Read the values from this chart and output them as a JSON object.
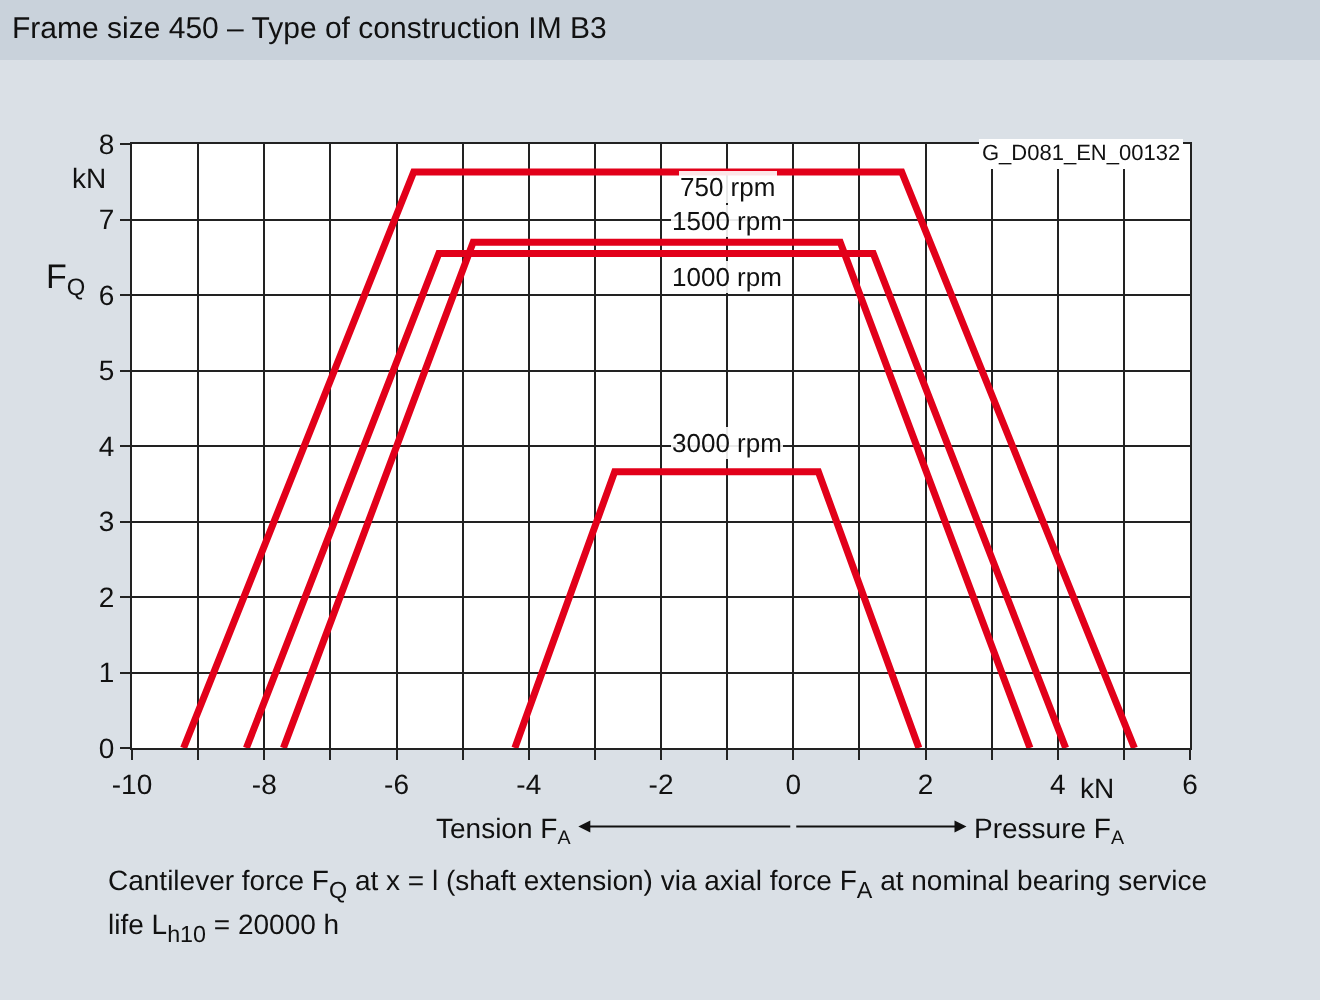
{
  "chart_data": {
    "type": "line",
    "title": "Frame size 450 – Type of construction IM B3",
    "ylabel": "F$_{Q}$",
    "series": [
      {
        "name": "750 rpm",
        "color": "#e2001a",
        "x": [
          -9.22,
          -5.74,
          1.64,
          5.16
        ],
        "values": [
          0,
          7.63,
          7.63,
          0
        ]
      },
      {
        "name": "1500 rpm",
        "color": "#e2001a",
        "x": [
          -7.71,
          -4.84,
          0.71,
          3.58
        ],
        "values": [
          0,
          6.7,
          6.7,
          0
        ]
      },
      {
        "name": "1000 rpm",
        "color": "#e2001a",
        "x": [
          -8.27,
          -5.36,
          1.21,
          4.12
        ],
        "values": [
          0,
          6.55,
          6.55,
          0
        ]
      },
      {
        "name": "3000 rpm",
        "color": "#e2001a",
        "x": [
          -4.21,
          -2.7,
          0.38,
          1.9
        ],
        "values": [
          0,
          3.66,
          3.66,
          0
        ]
      }
    ],
    "xlim": [
      -10,
      6
    ],
    "ylim": [
      0,
      8
    ],
    "xticks": [
      -10,
      {
        "value": -9,
        "label": null
      },
      -8,
      {
        "value": -7,
        "label": null
      },
      -6,
      {
        "value": -5,
        "label": null
      },
      -4,
      {
        "value": -3,
        "label": null
      },
      -2,
      {
        "value": -1,
        "label": null
      },
      0,
      {
        "value": 1,
        "label": null
      },
      2,
      {
        "value": 3,
        "label": null
      },
      4,
      {
        "value": 5,
        "label": null
      },
      6
    ],
    "yticks": [
      0,
      1,
      2,
      3,
      4,
      5,
      6,
      7,
      8
    ],
    "annotations": [
      "kN",
      "kN",
      "G_D081_EN_00132",
      "Tension F$_{A}$",
      "Pressure F$_{A}$",
      "Cantilever force F$_{Q}$ at x = l (shaft extension) via axial force F$_{A}$ at nominal bearing service life L$_{h10}$ = 20000 h"
    ],
    "grid": true,
    "legend": false,
    "marker": "none",
    "line_style": "solid"
  }
}
